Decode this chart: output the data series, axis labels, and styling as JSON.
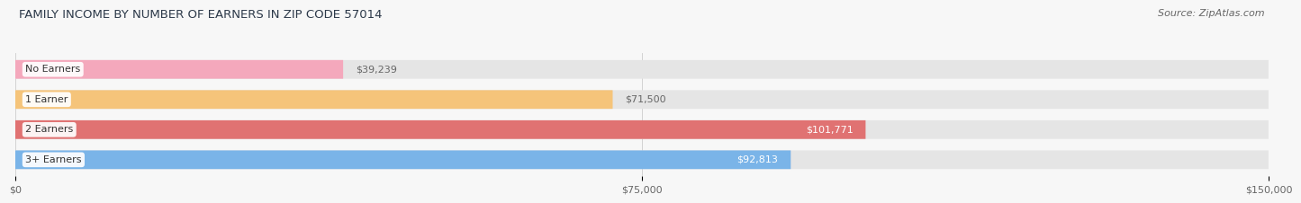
{
  "title": "FAMILY INCOME BY NUMBER OF EARNERS IN ZIP CODE 57014",
  "source": "Source: ZipAtlas.com",
  "categories": [
    "No Earners",
    "1 Earner",
    "2 Earners",
    "3+ Earners"
  ],
  "values": [
    39239,
    71500,
    101771,
    92813
  ],
  "bar_colors": [
    "#f4a8bc",
    "#f5c47a",
    "#e07272",
    "#7ab4e8"
  ],
  "value_label_colors": [
    "#666666",
    "#666666",
    "#ffffff",
    "#ffffff"
  ],
  "value_label_inside": [
    false,
    false,
    true,
    true
  ],
  "bar_bg_color": "#e5e5e5",
  "tick_labels": [
    "$0",
    "$75,000",
    "$150,000"
  ],
  "tick_values": [
    0,
    75000,
    150000
  ],
  "xlim": [
    0,
    150000
  ],
  "background_color": "#f7f7f7",
  "bar_height": 0.62,
  "bar_gap": 0.38,
  "fig_width": 14.06,
  "fig_height": 2.33,
  "title_fontsize": 9.5,
  "source_fontsize": 8,
  "bar_label_fontsize": 8,
  "category_fontsize": 8,
  "tick_fontsize": 8
}
